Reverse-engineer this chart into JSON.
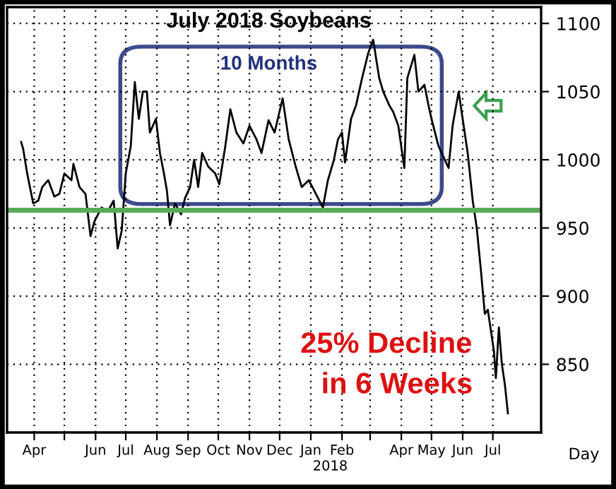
{
  "chart_data": {
    "type": "line",
    "title": "July 2018 Soybeans",
    "xlabel": "Day",
    "annotations": [
      "10 Months",
      "25% Decline",
      "in 6 Weeks",
      "2018"
    ],
    "x": [
      "2017-03-19",
      "2017-03-21",
      "2017-03-25",
      "2017-03-31",
      "2017-04-05",
      "2017-04-09",
      "2017-04-15",
      "2017-04-21",
      "2017-04-26",
      "2017-05-01",
      "2017-05-08",
      "2017-05-10",
      "2017-05-16",
      "2017-05-22",
      "2017-05-27",
      "2017-05-31",
      "2017-06-07",
      "2017-06-13",
      "2017-06-19",
      "2017-06-23",
      "2017-06-27",
      "2017-07-01",
      "2017-07-06",
      "2017-07-10",
      "2017-07-14",
      "2017-07-18",
      "2017-07-22",
      "2017-07-25",
      "2017-07-31",
      "2017-08-04",
      "2017-08-08",
      "2017-08-11",
      "2017-08-14",
      "2017-08-19",
      "2017-08-25",
      "2017-08-29",
      "2017-09-03",
      "2017-09-07",
      "2017-09-11",
      "2017-09-15",
      "2017-09-21",
      "2017-09-28",
      "2017-10-02",
      "2017-10-08",
      "2017-10-13",
      "2017-10-19",
      "2017-10-26",
      "2017-11-01",
      "2017-11-08",
      "2017-11-13",
      "2017-11-20",
      "2017-11-26",
      "2017-12-04",
      "2017-12-10",
      "2017-12-17",
      "2017-12-23",
      "2017-12-30",
      "2018-01-04",
      "2018-01-13",
      "2018-01-18",
      "2018-01-24",
      "2018-01-28",
      "2018-02-01",
      "2018-02-04",
      "2018-02-10",
      "2018-02-15",
      "2018-02-21",
      "2018-02-27",
      "2018-03-04",
      "2018-03-10",
      "2018-03-14",
      "2018-03-20",
      "2018-03-24",
      "2018-03-29",
      "2018-04-04",
      "2018-04-07",
      "2018-04-14",
      "2018-04-18",
      "2018-04-24",
      "2018-04-28",
      "2018-05-01",
      "2018-05-08",
      "2018-05-11",
      "2018-05-18",
      "2018-05-22",
      "2018-05-28",
      "2018-06-01",
      "2018-06-06",
      "2018-06-11",
      "2018-06-15",
      "2018-06-19",
      "2018-06-23",
      "2018-06-26",
      "2018-06-29",
      "2018-07-02",
      "2018-07-04",
      "2018-07-07",
      "2018-07-10",
      "2018-07-13",
      "2018-07-16"
    ],
    "series": [
      {
        "color": "#000000",
        "values": [
          1013,
          1008,
          990,
          968,
          970,
          980,
          985,
          973,
          975,
          990,
          985,
          997,
          980,
          975,
          944,
          955,
          965,
          962,
          970,
          935,
          948,
          990,
          1010,
          1057,
          1030,
          1050,
          1050,
          1020,
          1030,
          1005,
          990,
          977,
          952,
          968,
          960,
          972,
          980,
          1000,
          980,
          1005,
          995,
          990,
          982,
          1010,
          1037,
          1020,
          1012,
          1025,
          1015,
          1005,
          1029,
          1020,
          1045,
          1015,
          995,
          980,
          985,
          978,
          965,
          985,
          1000,
          1015,
          1020,
          998,
          1030,
          1040,
          1060,
          1078,
          1088,
          1060,
          1050,
          1040,
          1035,
          1025,
          994,
          1060,
          1077,
          1050,
          1055,
          1040,
          1030,
          1010,
          1005,
          994,
          1025,
          1050,
          1030,
          1005,
          970,
          950,
          920,
          887,
          890,
          875,
          860,
          840,
          877,
          850,
          835,
          814
        ]
      }
    ],
    "ref_lines": [
      {
        "axis": "y",
        "value": 963,
        "color": "#5aaa5a"
      }
    ],
    "xlim": [
      "2017-03-05",
      "2018-08-18"
    ],
    "xticks": [
      {
        "value": "2017-04-01",
        "label": "Apr"
      },
      {
        "value": "2017-05-01",
        "label": null
      },
      {
        "value": "2017-06-01",
        "label": "Jun"
      },
      {
        "value": "2017-07-01",
        "label": "Jul"
      },
      {
        "value": "2017-08-01",
        "label": "Aug"
      },
      {
        "value": "2017-09-01",
        "label": "Sep"
      },
      {
        "value": "2017-10-01",
        "label": "Oct"
      },
      {
        "value": "2017-11-01",
        "label": "Nov"
      },
      {
        "value": "2017-12-01",
        "label": "Dec"
      },
      {
        "value": "2018-01-01",
        "label": "Jan"
      },
      {
        "value": "2018-02-01",
        "label": "Feb"
      },
      {
        "value": "2018-03-01",
        "label": null
      },
      {
        "value": "2018-04-01",
        "label": "Apr"
      },
      {
        "value": "2018-05-01",
        "label": "May"
      },
      {
        "value": "2018-06-01",
        "label": "Jun"
      },
      {
        "value": "2018-07-01",
        "label": "Jul"
      }
    ],
    "ylim": [
      800,
      1112
    ],
    "yticks": [
      850,
      900,
      950,
      1000,
      1050,
      1100
    ],
    "grid": true,
    "legend": false,
    "marker": "none",
    "line_style": "solid"
  }
}
